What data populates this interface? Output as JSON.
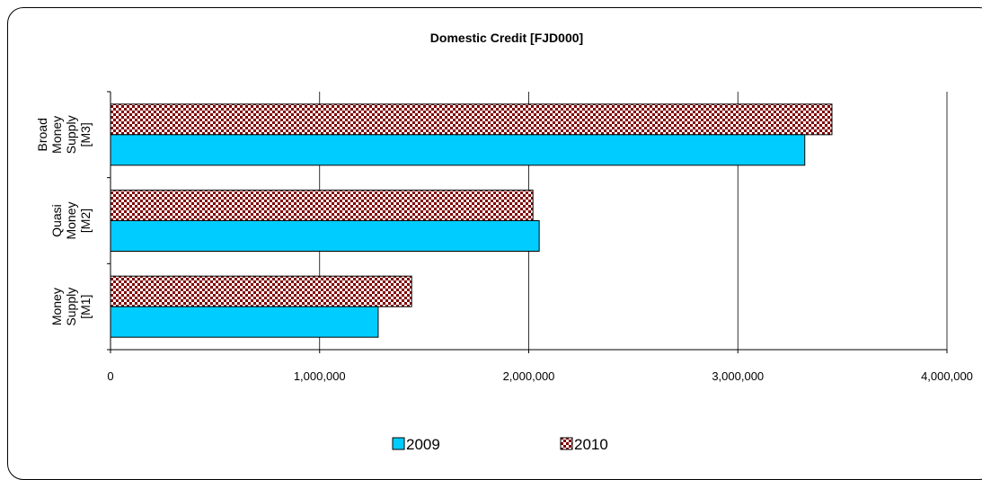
{
  "chart_data": {
    "type": "bar",
    "orientation": "horizontal",
    "title": "Domestic Credit [FJD000]",
    "categories": [
      [
        "Broad",
        "Money",
        "Supply",
        "[M3]"
      ],
      [
        "Quasi",
        "Money",
        "[M2]"
      ],
      [
        "Money",
        "Supply",
        "[M1]"
      ]
    ],
    "series": [
      {
        "name": "2009",
        "values": [
          3320000,
          2050000,
          1280000
        ],
        "color": "#00ccff",
        "pattern": "solid"
      },
      {
        "name": "2010",
        "values": [
          3450000,
          2020000,
          1440000
        ],
        "color": "#800000",
        "pattern": "checker"
      }
    ],
    "xlim": [
      0,
      4000000
    ],
    "xticks": [
      0,
      1000000,
      2000000,
      3000000,
      4000000
    ],
    "xtick_labels": [
      "0",
      "1,000,000",
      "2,000,000",
      "3,000,000",
      "4,000,000"
    ],
    "grid": "vertical",
    "legend": "bottom"
  }
}
